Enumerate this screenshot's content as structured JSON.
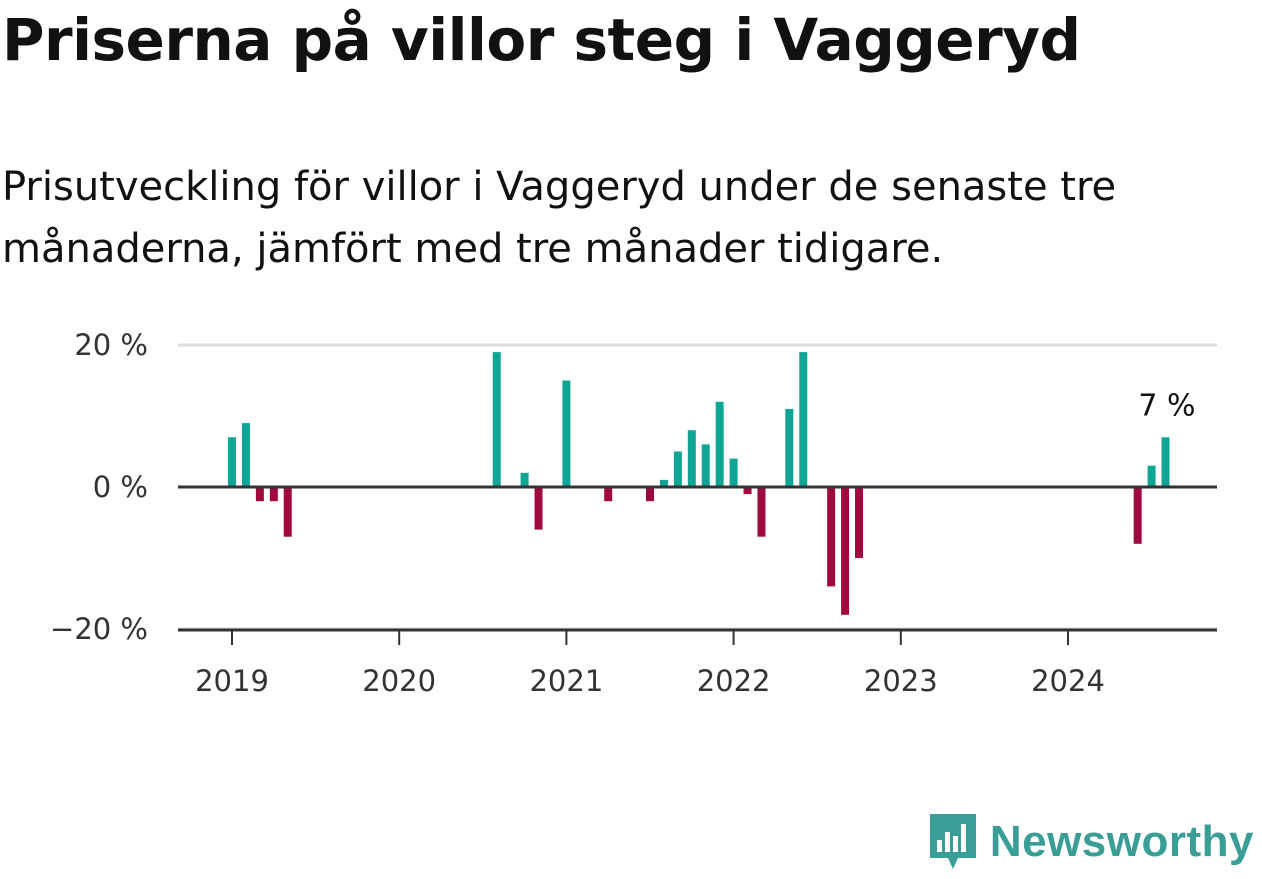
{
  "header": {
    "title": "Priserna på villor steg i Vaggeryd",
    "subtitle": "Prisutveckling för villor i Vaggeryd under de senaste tre månaderna, jämfört med tre månader tidigare."
  },
  "brand": {
    "name": "Newsworthy",
    "color": "#3a9e97",
    "icon": "newsworthy-logo-icon"
  },
  "colors": {
    "positive": "#10a595",
    "negative": "#a0093f",
    "grid": "#dddddd",
    "zero": "#333333"
  },
  "chart_data": {
    "type": "bar",
    "ylim": [
      -20,
      20
    ],
    "y_ticks": [
      {
        "value": 20,
        "label": "20 %"
      },
      {
        "value": 0,
        "label": "0 %"
      },
      {
        "value": -20,
        "label": "−20 %"
      }
    ],
    "x_ticks": [
      "2019",
      "2020",
      "2021",
      "2022",
      "2023",
      "2024"
    ],
    "annotation": {
      "text": "7 %",
      "x": "2024-08"
    },
    "grid": true,
    "values": [
      {
        "x": "2019-01",
        "y": 7
      },
      {
        "x": "2019-02",
        "y": 9
      },
      {
        "x": "2019-03",
        "y": -2
      },
      {
        "x": "2019-04",
        "y": -2
      },
      {
        "x": "2019-05",
        "y": -7
      },
      {
        "x": "2020-08",
        "y": 19
      },
      {
        "x": "2020-10",
        "y": 2
      },
      {
        "x": "2020-11",
        "y": -6
      },
      {
        "x": "2021-01",
        "y": 15
      },
      {
        "x": "2021-04",
        "y": -2
      },
      {
        "x": "2021-07",
        "y": -2
      },
      {
        "x": "2021-08",
        "y": 1
      },
      {
        "x": "2021-09",
        "y": 5
      },
      {
        "x": "2021-10",
        "y": 8
      },
      {
        "x": "2021-11",
        "y": 6
      },
      {
        "x": "2021-12",
        "y": 12
      },
      {
        "x": "2022-01",
        "y": 4
      },
      {
        "x": "2022-02",
        "y": -1
      },
      {
        "x": "2022-03",
        "y": -7
      },
      {
        "x": "2022-05",
        "y": 11
      },
      {
        "x": "2022-06",
        "y": 19
      },
      {
        "x": "2022-08",
        "y": -14
      },
      {
        "x": "2022-09",
        "y": -18
      },
      {
        "x": "2022-10",
        "y": -10
      },
      {
        "x": "2024-06",
        "y": -8
      },
      {
        "x": "2024-07",
        "y": 3
      },
      {
        "x": "2024-08",
        "y": 7
      }
    ]
  }
}
